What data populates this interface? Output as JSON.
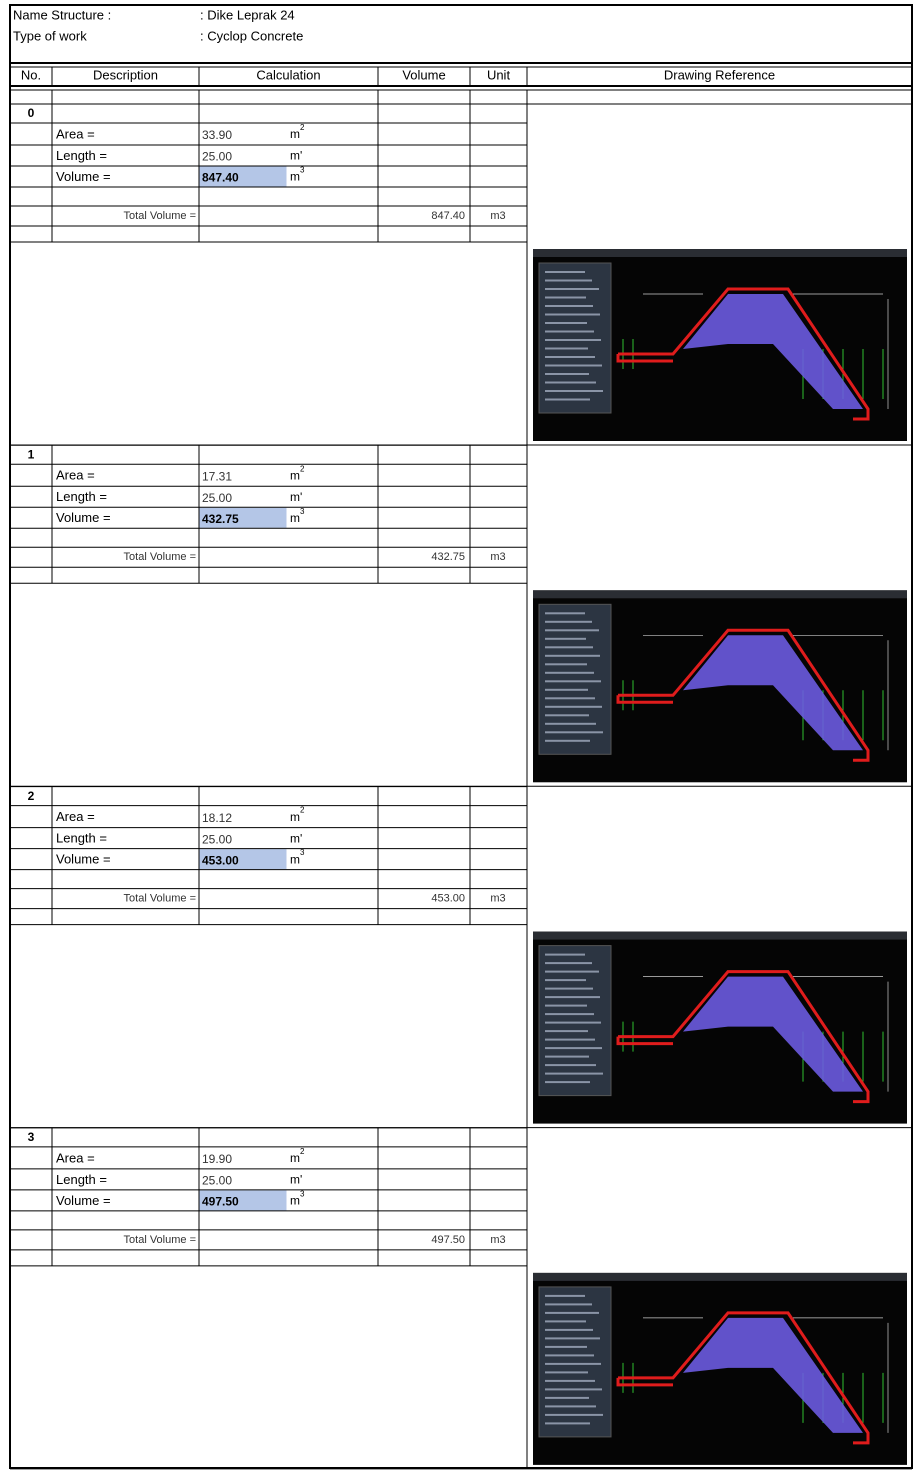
{
  "header": {
    "name_label": "Name Structure :",
    "name_value": ": Dike Leprak 24",
    "type_label": "Type of work",
    "type_value": ": Cyclop Concrete"
  },
  "columns": [
    "No.",
    "Description",
    "Calculation",
    "Volume",
    "Unit",
    "Drawing Reference"
  ],
  "sections": [
    {
      "no": "0",
      "rows": [
        {
          "label": "Area =",
          "value": "33.90",
          "unit": "m",
          "sup": "2"
        },
        {
          "label": "Length =",
          "value": "25.00",
          "unit": "m'"
        },
        {
          "label": "Volume =",
          "value": "847.40",
          "unit": "m",
          "sup": "3"
        }
      ],
      "total_label": "Total Volume =",
      "total_value": "847.40",
      "total_unit": "m3"
    },
    {
      "no": "1",
      "rows": [
        {
          "label": "Area =",
          "value": "17.31",
          "unit": "m",
          "sup": "2"
        },
        {
          "label": "Length =",
          "value": "25.00",
          "unit": "m'"
        },
        {
          "label": "Volume =",
          "value": "432.75",
          "unit": "m",
          "sup": "3"
        }
      ],
      "total_label": "Total Volume =",
      "total_value": "432.75",
      "total_unit": "m3"
    },
    {
      "no": "2",
      "rows": [
        {
          "label": "Area =",
          "value": "18.12",
          "unit": "m",
          "sup": "2"
        },
        {
          "label": "Length =",
          "value": "25.00",
          "unit": "m'"
        },
        {
          "label": "Volume =",
          "value": "453.00",
          "unit": "m",
          "sup": "3"
        }
      ],
      "total_label": "Total Volume =",
      "total_value": "453.00",
      "total_unit": "m3"
    },
    {
      "no": "3",
      "rows": [
        {
          "label": "Area =",
          "value": "19.90",
          "unit": "m",
          "sup": "2"
        },
        {
          "label": "Length =",
          "value": "25.00",
          "unit": "m'"
        },
        {
          "label": "Volume =",
          "value": "497.50",
          "unit": "m",
          "sup": "3"
        }
      ],
      "total_label": "Total Volume =",
      "total_value": "497.50",
      "total_unit": "m3"
    }
  ]
}
